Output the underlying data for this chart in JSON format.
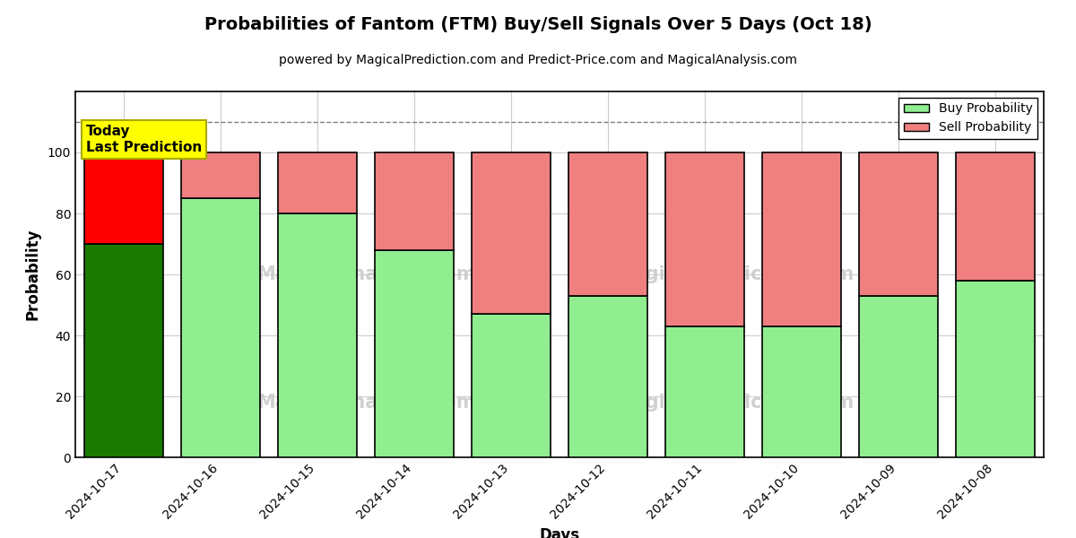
{
  "title": "Probabilities of Fantom (FTM) Buy/Sell Signals Over 5 Days (Oct 18)",
  "subtitle": "powered by MagicalPrediction.com and Predict-Price.com and MagicalAnalysis.com",
  "xlabel": "Days",
  "ylabel": "Probability",
  "dates": [
    "2024-10-17",
    "2024-10-16",
    "2024-10-15",
    "2024-10-14",
    "2024-10-13",
    "2024-10-12",
    "2024-10-11",
    "2024-10-10",
    "2024-10-09",
    "2024-10-08"
  ],
  "buy_values": [
    70,
    85,
    80,
    68,
    47,
    53,
    43,
    43,
    53,
    58
  ],
  "sell_values": [
    30,
    15,
    20,
    32,
    53,
    47,
    57,
    57,
    47,
    42
  ],
  "today_index": 0,
  "buy_color_today": "#1a7a00",
  "sell_color_today": "#ff0000",
  "buy_color_normal": "#90ee90",
  "sell_color_normal": "#f08080",
  "today_label_bg": "#ffff00",
  "today_label_text": "Today\nLast Prediction",
  "legend_buy": "Buy Probability",
  "legend_sell": "Sell Probability",
  "ylim_min": 0,
  "ylim_max": 120,
  "yticks": [
    0,
    20,
    40,
    60,
    80,
    100
  ],
  "dashed_line_y": 110,
  "background_color": "#ffffff",
  "bar_edge_color": "#000000",
  "bar_linewidth": 1.2,
  "bar_width": 0.82,
  "title_fontsize": 14,
  "subtitle_fontsize": 10,
  "axis_label_fontsize": 12,
  "tick_fontsize": 10,
  "legend_fontsize": 10,
  "grid_color": "#cccccc",
  "grid_linewidth": 0.8
}
